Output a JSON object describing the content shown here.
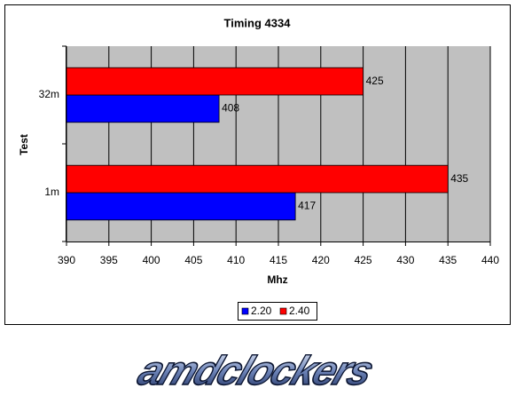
{
  "chart_data": {
    "type": "hbar",
    "title": "Timing 4334",
    "x_label": "Mhz",
    "y_label": "Test",
    "categories": [
      "1m",
      "32m"
    ],
    "series": [
      {
        "name": "2.20",
        "color": "#0000ff",
        "values": [
          417,
          408
        ]
      },
      {
        "name": "2.40",
        "color": "#ff0000",
        "values": [
          435,
          425
        ]
      }
    ],
    "xlim": [
      390,
      440
    ],
    "xticks": [
      390,
      395,
      400,
      405,
      410,
      415,
      420,
      425,
      430,
      435,
      440
    ],
    "grid": true,
    "legend": "bottom"
  },
  "logo": "amdclockers"
}
